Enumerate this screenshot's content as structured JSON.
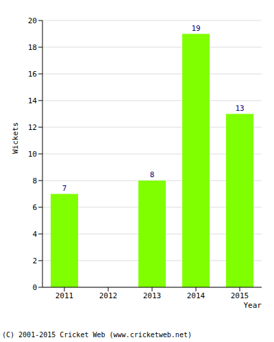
{
  "chart_data": {
    "type": "bar",
    "categories": [
      "2011",
      "2012",
      "2013",
      "2014",
      "2015"
    ],
    "values": [
      7,
      0,
      8,
      19,
      13
    ],
    "color": "#80ff00",
    "x_label": "Year",
    "y_label": "Wickets",
    "ylim": [
      0,
      20
    ],
    "yticks": [
      0,
      2,
      4,
      6,
      8,
      10,
      12,
      14,
      16,
      18,
      20
    ],
    "grid": true,
    "data_labels": true,
    "annotations": [
      "(C) 2001-2015 Cricket Web (www.cricketweb.net)"
    ]
  }
}
